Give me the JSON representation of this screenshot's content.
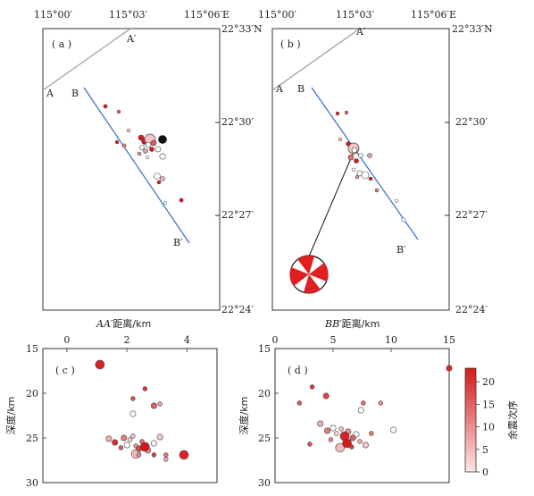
{
  "map_labels": {
    "top_lon": [
      "115°00′",
      "115°03′",
      "115°06′E"
    ],
    "right_lat": [
      "22°33′N",
      "22°30′",
      "22°27′",
      "22°24′"
    ],
    "panel_a": "( a )",
    "panel_b": "( b )",
    "panel_c": "( c )",
    "panel_d": "( d )",
    "A": "A",
    "A_prime": "A′",
    "B": "B",
    "B_prime": "B′"
  },
  "depth_plot_c": {
    "xlabel_italic": "AA′",
    "xlabel_rest": "距离/km",
    "ylabel": "深度/km",
    "x_ticks": [
      "0",
      "2",
      "4"
    ],
    "y_ticks": [
      "15",
      "20",
      "25",
      "30"
    ]
  },
  "depth_plot_d": {
    "xlabel_italic": "BB′",
    "xlabel_rest": "距离/km",
    "ylabel": "深度/km",
    "x_ticks": [
      "0",
      "5",
      "10",
      "15"
    ],
    "y_ticks": [
      "15",
      "20",
      "25",
      "30"
    ]
  },
  "colorbar": {
    "label": "余震次序",
    "ticks": [
      "0",
      "5",
      "10",
      "15",
      "20"
    ],
    "range": [
      0,
      23
    ],
    "colors": [
      "#fce6e6",
      "#d7191c"
    ]
  },
  "colors": {
    "fault_line": "#a09b8f",
    "profile_line": "#2f6fbf",
    "mainshock": "#111111"
  },
  "chart_data": [
    {
      "type": "scatter",
      "panel": "c",
      "xlabel": "AA′距离/km",
      "ylabel": "深度/km",
      "xlim": [
        -0.8,
        5
      ],
      "ylim": [
        15,
        30
      ],
      "y_inverted": true,
      "points": [
        {
          "x": 1.1,
          "y": 16.8,
          "order": 22
        },
        {
          "x": 2.6,
          "y": 19.5,
          "order": 20
        },
        {
          "x": 2.2,
          "y": 20.6,
          "order": 17
        },
        {
          "x": 2.9,
          "y": 21.4,
          "order": 15
        },
        {
          "x": 3.1,
          "y": 21.2,
          "order": 8
        },
        {
          "x": 2.2,
          "y": 22.3,
          "order": 0
        },
        {
          "x": 1.4,
          "y": 25.1,
          "order": 6
        },
        {
          "x": 1.6,
          "y": 25.5,
          "order": 21
        },
        {
          "x": 1.9,
          "y": 25.0,
          "order": 12
        },
        {
          "x": 2.0,
          "y": 25.8,
          "order": 0
        },
        {
          "x": 2.1,
          "y": 25.2,
          "order": 2
        },
        {
          "x": 2.2,
          "y": 24.8,
          "order": 4
        },
        {
          "x": 2.3,
          "y": 25.9,
          "order": 10
        },
        {
          "x": 2.4,
          "y": 26.2,
          "order": 18
        },
        {
          "x": 2.5,
          "y": 25.4,
          "order": 14
        },
        {
          "x": 2.6,
          "y": 26.0,
          "order": 23
        },
        {
          "x": 2.7,
          "y": 26.4,
          "order": 9
        },
        {
          "x": 1.8,
          "y": 26.1,
          "order": 16
        },
        {
          "x": 2.3,
          "y": 26.8,
          "order": 5
        },
        {
          "x": 2.9,
          "y": 25.6,
          "order": 0
        },
        {
          "x": 3.1,
          "y": 24.9,
          "order": 3
        },
        {
          "x": 2.9,
          "y": 26.9,
          "order": 19
        },
        {
          "x": 3.3,
          "y": 26.9,
          "order": 13
        },
        {
          "x": 3.3,
          "y": 27.4,
          "order": 7
        },
        {
          "x": 3.9,
          "y": 26.9,
          "order": 22
        },
        {
          "x": 2.4,
          "y": 26.9,
          "order": 11
        }
      ]
    },
    {
      "type": "scatter",
      "panel": "d",
      "xlabel": "BB′距离/km",
      "ylabel": "深度/km",
      "xlim": [
        0,
        15
      ],
      "ylim": [
        15,
        30
      ],
      "y_inverted": true,
      "points": [
        {
          "x": 15.0,
          "y": 17.2,
          "order": 21
        },
        {
          "x": 3.2,
          "y": 19.3,
          "order": 20
        },
        {
          "x": 4.4,
          "y": 20.3,
          "order": 18
        },
        {
          "x": 2.1,
          "y": 21.1,
          "order": 16
        },
        {
          "x": 7.6,
          "y": 21.1,
          "order": 14
        },
        {
          "x": 9.1,
          "y": 21.1,
          "order": 10
        },
        {
          "x": 7.4,
          "y": 21.9,
          "order": 0
        },
        {
          "x": 3.9,
          "y": 23.4,
          "order": 6
        },
        {
          "x": 4.5,
          "y": 24.2,
          "order": 12
        },
        {
          "x": 5.0,
          "y": 23.9,
          "order": 0
        },
        {
          "x": 5.3,
          "y": 24.5,
          "order": 2
        },
        {
          "x": 5.7,
          "y": 24.0,
          "order": 4
        },
        {
          "x": 6.0,
          "y": 24.8,
          "order": 22
        },
        {
          "x": 6.3,
          "y": 24.3,
          "order": 9
        },
        {
          "x": 6.7,
          "y": 25.0,
          "order": 15
        },
        {
          "x": 7.0,
          "y": 24.6,
          "order": 0
        },
        {
          "x": 7.3,
          "y": 25.4,
          "order": 7
        },
        {
          "x": 4.8,
          "y": 25.2,
          "order": 11
        },
        {
          "x": 3.0,
          "y": 25.7,
          "order": 17
        },
        {
          "x": 5.6,
          "y": 26.1,
          "order": 5
        },
        {
          "x": 6.6,
          "y": 26.0,
          "order": 19
        },
        {
          "x": 7.8,
          "y": 25.8,
          "order": 3
        },
        {
          "x": 8.3,
          "y": 24.5,
          "order": 13
        },
        {
          "x": 10.2,
          "y": 24.1,
          "order": 0
        },
        {
          "x": 6.2,
          "y": 25.6,
          "order": 23
        }
      ]
    }
  ]
}
